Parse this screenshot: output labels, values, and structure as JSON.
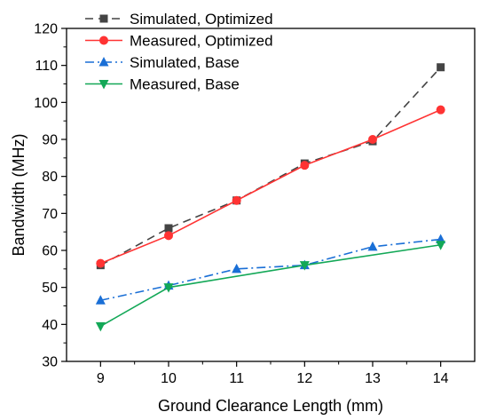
{
  "chart_data": {
    "type": "line",
    "xlabel": "Ground Clearance Length (mm)",
    "ylabel": "Bandwidth (MHz)",
    "xlim": [
      8.5,
      14.5
    ],
    "ylim": [
      30,
      120
    ],
    "x_ticks": [
      "9",
      "10",
      "11",
      "12",
      "13",
      "14"
    ],
    "y_ticks": [
      "30",
      "40",
      "50",
      "60",
      "70",
      "80",
      "90",
      "100",
      "110",
      "120"
    ],
    "grid": false,
    "legend_position": "top-left",
    "series": [
      {
        "name": "Simulated, Optimized",
        "x": [
          9,
          10,
          11,
          12,
          13,
          14
        ],
        "values": [
          56,
          66,
          73.5,
          83.5,
          89.5,
          109.5
        ],
        "color": "#444444",
        "line_style": "dashed",
        "marker": "square"
      },
      {
        "name": "Measured, Optimized",
        "x": [
          9,
          10,
          11,
          12,
          13,
          14
        ],
        "values": [
          56.5,
          64,
          73.5,
          83,
          90,
          98
        ],
        "color": "#ff3333",
        "line_style": "solid",
        "marker": "circle"
      },
      {
        "name": "Simulated, Base",
        "x": [
          9,
          10,
          11,
          12,
          13,
          14
        ],
        "values": [
          46.5,
          50.5,
          55,
          56,
          61,
          63
        ],
        "color": "#1a6fd6",
        "line_style": "dash-dot",
        "marker": "triangle-up"
      },
      {
        "name": "Measured, Base",
        "x": [
          9,
          10,
          12,
          14
        ],
        "values": [
          39.5,
          50,
          56,
          61.5
        ],
        "color": "#13a857",
        "line_style": "solid",
        "marker": "triangle-down"
      }
    ]
  }
}
